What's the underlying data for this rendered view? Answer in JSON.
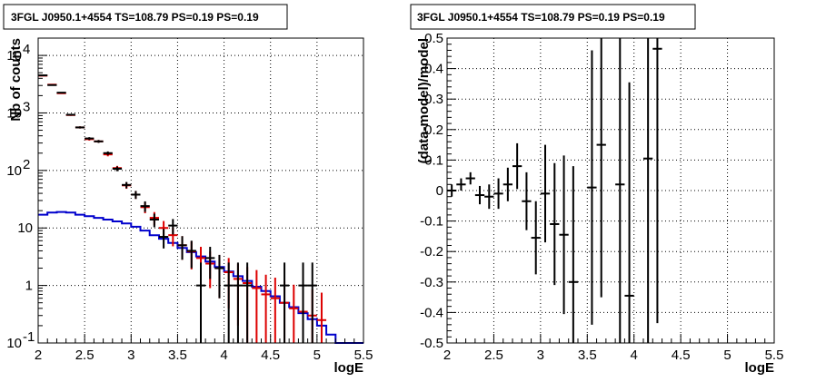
{
  "chart_data": [
    {
      "type": "histogram-errorbars",
      "title": "3FGL J0950.1+4554 TS=108.79 PS=0.19 PS=0.19",
      "xlabel": "logE",
      "ylabel": "Nb of counts",
      "xlim": [
        2,
        5.5
      ],
      "ylim": [
        0.1,
        20000
      ],
      "yscale": "log",
      "grid": true,
      "x_ticks": [
        "2",
        "2.5",
        "3",
        "3.5",
        "4",
        "4.5",
        "5",
        "5.5"
      ],
      "y_ticks": [
        {
          "value": 0.1,
          "label": "10",
          "exp": "-1"
        },
        {
          "value": 1,
          "label": "1",
          "exp": ""
        },
        {
          "value": 10,
          "label": "10",
          "exp": ""
        },
        {
          "value": 100,
          "label": "10",
          "exp": "2"
        },
        {
          "value": 1000,
          "label": "10",
          "exp": "3"
        },
        {
          "value": 10000,
          "label": "10",
          "exp": "4"
        }
      ],
      "bin_width": 0.1,
      "data_color": "#000000",
      "model_color": "#dd0000",
      "component_color": "#0000cc",
      "data": {
        "x": [
          2.05,
          2.15,
          2.25,
          2.35,
          2.45,
          2.55,
          2.65,
          2.75,
          2.85,
          2.95,
          3.05,
          3.15,
          3.25,
          3.35,
          3.45,
          3.55,
          3.65,
          3.75,
          3.85,
          3.95,
          4.05,
          4.15,
          4.25,
          4.35,
          4.45,
          4.55,
          4.65,
          4.75,
          4.85,
          4.95
        ],
        "y": [
          4500,
          3050,
          2250,
          930,
          560,
          360,
          320,
          200,
          107,
          56,
          38,
          24,
          14,
          7,
          11,
          5,
          4,
          1,
          3,
          2,
          1,
          1,
          1,
          0,
          0,
          0,
          1,
          0,
          1,
          1
        ],
        "yerr_low": [
          70,
          55,
          47,
          30,
          23,
          19,
          18,
          14,
          10,
          7,
          6,
          5,
          3.7,
          2.6,
          3.3,
          2.2,
          2.0,
          0.9,
          1.7,
          1.4,
          0.9,
          0.9,
          0.9,
          0,
          0,
          0,
          0.9,
          0,
          0.9,
          0.9
        ],
        "yerr_high": [
          70,
          55,
          47,
          30,
          23,
          19,
          18,
          14,
          10,
          7,
          6,
          5,
          3.7,
          2.6,
          3.3,
          2.2,
          2.0,
          1.5,
          1.7,
          1.4,
          1.5,
          1.5,
          1.5,
          0,
          0,
          0,
          1.5,
          0,
          1.5,
          1.5
        ]
      },
      "model": {
        "x": [
          2.05,
          2.15,
          2.25,
          2.35,
          2.45,
          2.55,
          2.65,
          2.75,
          2.85,
          2.95,
          3.05,
          3.15,
          3.25,
          3.35,
          3.45,
          3.55,
          3.65,
          3.75,
          3.85,
          3.95,
          4.05,
          4.15,
          4.25,
          4.35,
          4.45,
          4.55,
          4.65,
          4.75,
          4.85,
          4.95,
          5.05
        ],
        "y": [
          4450,
          3100,
          2200,
          920,
          560,
          350,
          320,
          190,
          110,
          55,
          38,
          23,
          15,
          10,
          7.5,
          5,
          3.9,
          3.0,
          2.4,
          2.0,
          1.7,
          1.3,
          1.1,
          0.9,
          0.7,
          0.6,
          0.5,
          0.4,
          0.35,
          0.3,
          0.25
        ],
        "yerr_low": [
          67,
          56,
          47,
          30,
          24,
          19,
          18,
          14,
          10,
          7,
          6,
          5,
          3.9,
          3.2,
          2.7,
          2.2,
          2.0,
          1.7,
          1.5,
          1.4,
          1.3,
          1.1,
          1.0,
          0.85,
          0.65,
          0.55,
          0.48,
          0.38,
          0.33,
          0.28,
          0.24
        ],
        "yerr_high": [
          67,
          56,
          47,
          30,
          24,
          19,
          18,
          14,
          10,
          7,
          6,
          5,
          3.9,
          3.2,
          2.7,
          2.2,
          2.0,
          1.7,
          1.5,
          1.4,
          1.3,
          1.1,
          1.0,
          0.95,
          0.84,
          0.77,
          0.7,
          0.63,
          0.59,
          0.55,
          0.5
        ]
      },
      "component": {
        "edges": [
          2.0,
          2.1,
          2.2,
          2.3,
          2.4,
          2.5,
          2.6,
          2.7,
          2.8,
          2.9,
          3.0,
          3.1,
          3.2,
          3.3,
          3.4,
          3.5,
          3.6,
          3.7,
          3.8,
          3.9,
          4.0,
          4.1,
          4.2,
          4.3,
          4.4,
          4.5,
          4.6,
          4.7,
          4.8,
          4.9,
          5.0,
          5.1,
          5.2,
          5.5
        ],
        "y": [
          17,
          18.5,
          19,
          18.5,
          17,
          16,
          15,
          14,
          13,
          12,
          10.5,
          9,
          7.5,
          6.5,
          5.5,
          4.5,
          3.8,
          3.2,
          2.6,
          2.1,
          1.75,
          1.45,
          1.2,
          0.95,
          0.8,
          0.65,
          0.5,
          0.42,
          0.33,
          0.26,
          0.2,
          0.14,
          0.1
        ]
      }
    },
    {
      "type": "scatter-errorbars",
      "title": "3FGL J0950.1+4554 TS=108.79 PS=0.19 PS=0.19",
      "xlabel": "logE",
      "ylabel": "(data-model)/model",
      "xlim": [
        2,
        5.5
      ],
      "ylim": [
        -0.5,
        0.5
      ],
      "grid": true,
      "x_ticks": [
        "2",
        "2.5",
        "3",
        "3.5",
        "4",
        "4.5",
        "5",
        "5.5"
      ],
      "y_ticks": [
        "-0.5",
        "-0.4",
        "-0.3",
        "-0.2",
        "-0.1",
        "0",
        "0.1",
        "0.2",
        "0.3",
        "0.4",
        "0.5"
      ],
      "bin_width": 0.1,
      "color": "#000000",
      "x": [
        2.05,
        2.15,
        2.25,
        2.35,
        2.45,
        2.55,
        2.65,
        2.75,
        2.85,
        2.95,
        3.05,
        3.15,
        3.25,
        3.35,
        3.55,
        3.65,
        3.85,
        3.95,
        4.15,
        4.25
      ],
      "y": [
        0.0,
        0.02,
        0.04,
        -0.015,
        -0.02,
        -0.01,
        0.02,
        0.08,
        -0.035,
        -0.155,
        -0.01,
        -0.11,
        -0.145,
        -0.3,
        0.01,
        0.15,
        0.02,
        -0.345,
        0.105,
        0.465
      ],
      "yerr": [
        0.02,
        0.02,
        0.02,
        0.03,
        0.04,
        0.05,
        0.055,
        0.075,
        0.095,
        0.12,
        0.16,
        0.2,
        0.26,
        0.38,
        0.45,
        0.5,
        0.6,
        0.7,
        0.8,
        0.9
      ]
    }
  ]
}
